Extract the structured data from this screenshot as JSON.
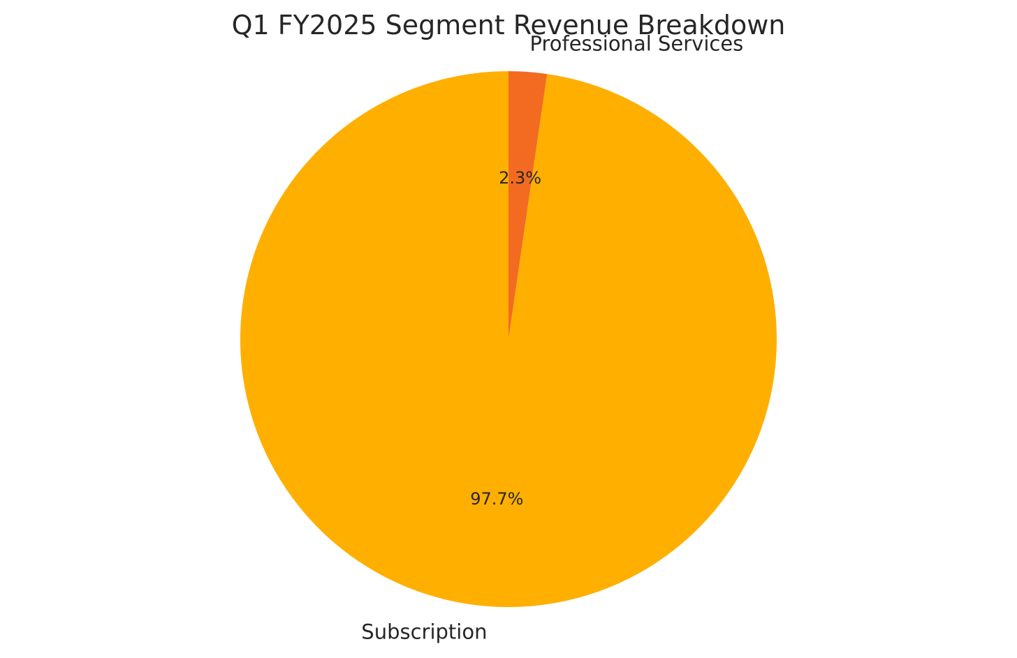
{
  "chart_data": {
    "type": "pie",
    "title": "Q1 FY2025 Segment Revenue Breakdown",
    "start_angle_deg": 90,
    "direction": "clockwise",
    "slices": [
      {
        "label": "Professional Services",
        "value": 2.3,
        "pct_label": "2.3%",
        "color": "#F26B21"
      },
      {
        "label": "Subscription",
        "value": 97.7,
        "pct_label": "97.7%",
        "color": "#FFAF00"
      }
    ]
  }
}
